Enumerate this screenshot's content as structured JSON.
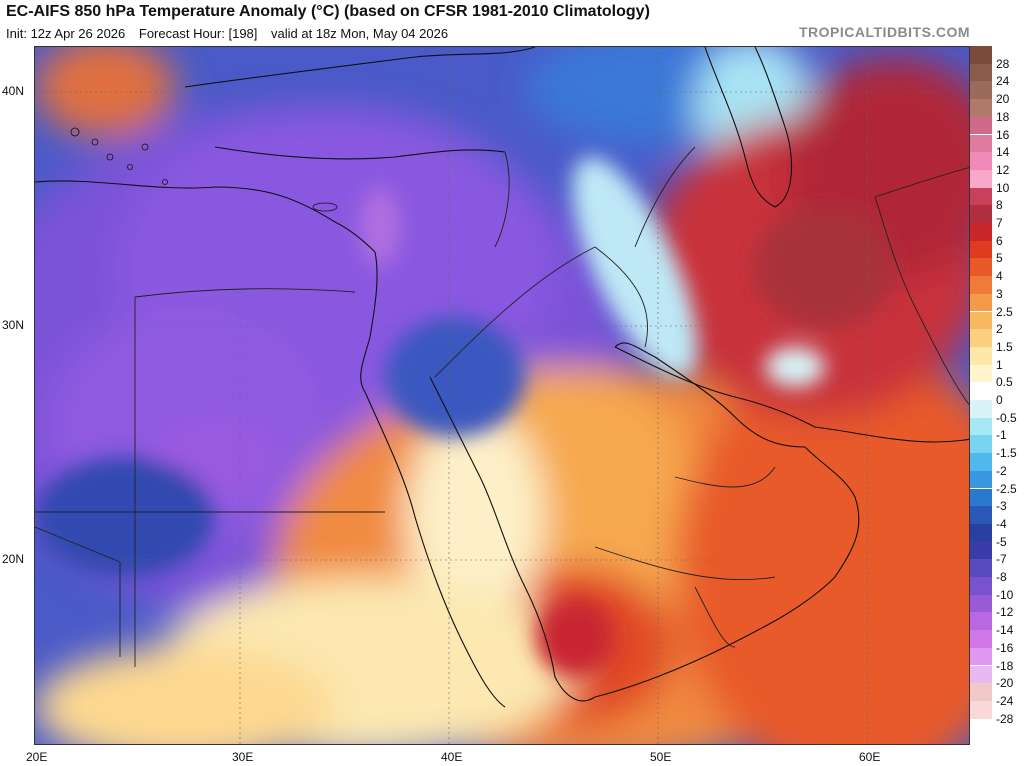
{
  "header": {
    "title": "EC-AIFS 850 hPa Temperature Anomaly (°C) (based on CFSR 1981-2010 Climatology)",
    "init": "Init: 12z Apr 26 2026",
    "forecast_hour": "Forecast Hour: [198]",
    "valid": "valid at 18z Mon, May 04 2026",
    "brand": "TROPICALTIDBITS.COM"
  },
  "axes": {
    "lat_labels": [
      "40N",
      "30N",
      "20N"
    ],
    "lon_labels": [
      "20E",
      "30E",
      "40E",
      "50E",
      "60E"
    ]
  },
  "colorbar": {
    "levels": [
      "28",
      "24",
      "20",
      "18",
      "16",
      "14",
      "12",
      "10",
      "8",
      "7",
      "6",
      "5",
      "4",
      "3",
      "2.5",
      "2",
      "1.5",
      "1",
      "0.5",
      "0",
      "-0.5",
      "-1",
      "-1.5",
      "-2",
      "-2.5",
      "-3",
      "-4",
      "-5",
      "-7",
      "-8",
      "-10",
      "-12",
      "-14",
      "-16",
      "-18",
      "-20",
      "-24",
      "-28"
    ],
    "colors": [
      "#7a4a3a",
      "#8a5a4a",
      "#9a6a5a",
      "#b07a6a",
      "#d06a8a",
      "#e07aa0",
      "#f08ab8",
      "#f8a8c8",
      "#c8405a",
      "#b03040",
      "#c82828",
      "#e03a20",
      "#ea5a28",
      "#f07a3a",
      "#f59a4a",
      "#f8b860",
      "#fad080",
      "#fce8a8",
      "#fff4cc",
      "#ffffff",
      "#d8f4f8",
      "#a8e8f4",
      "#78d4f0",
      "#50b8ec",
      "#3a98e0",
      "#2a78d0",
      "#2a58b8",
      "#2a40a0",
      "#3a3aa8",
      "#5a4ac0",
      "#7a52d0",
      "#9a5ad8",
      "#b868e0",
      "#d078e8",
      "#e098f0",
      "#e8b8f0",
      "#f0c8c8",
      "#f8d8d8"
    ]
  },
  "map": {
    "region": "Middle East / Arabian Peninsula",
    "palette": {
      "deep_purple": "#6a48d0",
      "purple": "#8a50d8",
      "blue": "#3a58c0",
      "light_blue": "#6aa0e8",
      "cyan": "#a8e0f4",
      "white": "#ffffff",
      "cream": "#fce8a8",
      "light_orange": "#f8b860",
      "orange": "#f08a40",
      "red_orange": "#e04a28",
      "red": "#c82830",
      "dark_red": "#a8303a"
    }
  }
}
